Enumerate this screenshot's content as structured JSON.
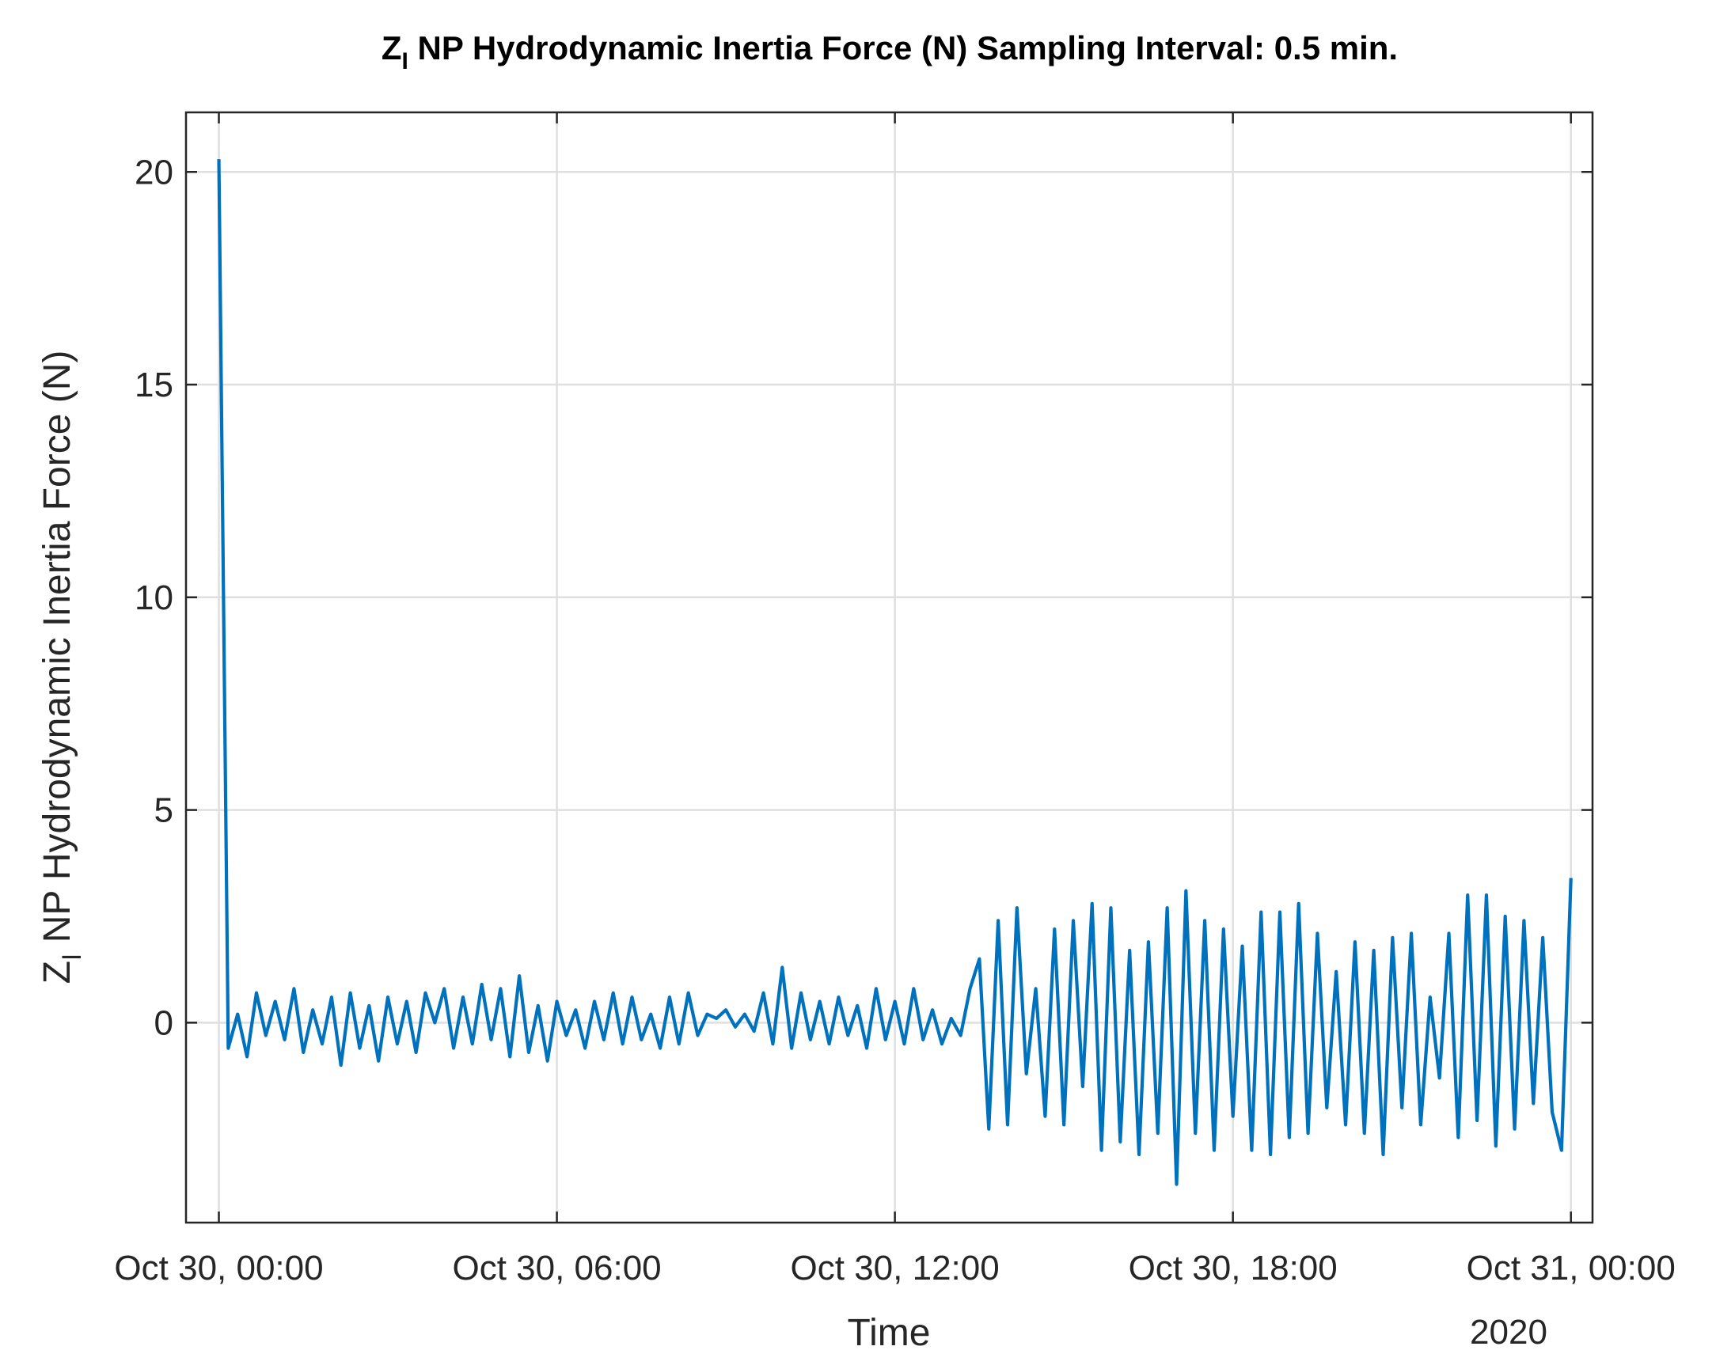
{
  "chart_data": {
    "type": "line",
    "title_parts": [
      "Z",
      "I",
      " NP Hydrodynamic Inertia Force (N) Sampling Interval: 0.5 min."
    ],
    "ylabel_parts": [
      "Z",
      "I",
      " NP Hydrodynamic Inertia Force (N)"
    ],
    "xlabel": "Time",
    "x_secondary_label": "2020",
    "grid": true,
    "xlim": [
      "2020-10-29T23:25",
      "2020-10-31T00:23"
    ],
    "xticks": [
      {
        "value": "2020-10-30T00:00",
        "label": "Oct 30, 00:00"
      },
      {
        "value": "2020-10-30T06:00",
        "label": "Oct 30, 06:00"
      },
      {
        "value": "2020-10-30T12:00",
        "label": "Oct 30, 12:00"
      },
      {
        "value": "2020-10-30T18:00",
        "label": "Oct 30, 18:00"
      },
      {
        "value": "2020-10-31T00:00",
        "label": "Oct 31, 00:00"
      }
    ],
    "ylim": [
      -4.7,
      21.4
    ],
    "yticks": [
      0,
      5,
      10,
      15,
      20
    ],
    "x": [
      "2020-10-30T00:00",
      "2020-10-30T00:10",
      "2020-10-30T00:20",
      "2020-10-30T00:30",
      "2020-10-30T00:40",
      "2020-10-30T00:50",
      "2020-10-30T01:00",
      "2020-10-30T01:10",
      "2020-10-30T01:20",
      "2020-10-30T01:30",
      "2020-10-30T01:40",
      "2020-10-30T01:50",
      "2020-10-30T02:00",
      "2020-10-30T02:10",
      "2020-10-30T02:20",
      "2020-10-30T02:30",
      "2020-10-30T02:40",
      "2020-10-30T02:50",
      "2020-10-30T03:00",
      "2020-10-30T03:10",
      "2020-10-30T03:20",
      "2020-10-30T03:30",
      "2020-10-30T03:40",
      "2020-10-30T03:50",
      "2020-10-30T04:00",
      "2020-10-30T04:10",
      "2020-10-30T04:20",
      "2020-10-30T04:30",
      "2020-10-30T04:40",
      "2020-10-30T04:50",
      "2020-10-30T05:00",
      "2020-10-30T05:10",
      "2020-10-30T05:20",
      "2020-10-30T05:30",
      "2020-10-30T05:40",
      "2020-10-30T05:50",
      "2020-10-30T06:00",
      "2020-10-30T06:10",
      "2020-10-30T06:20",
      "2020-10-30T06:30",
      "2020-10-30T06:40",
      "2020-10-30T06:50",
      "2020-10-30T07:00",
      "2020-10-30T07:10",
      "2020-10-30T07:20",
      "2020-10-30T07:30",
      "2020-10-30T07:40",
      "2020-10-30T07:50",
      "2020-10-30T08:00",
      "2020-10-30T08:10",
      "2020-10-30T08:20",
      "2020-10-30T08:30",
      "2020-10-30T08:40",
      "2020-10-30T08:50",
      "2020-10-30T09:00",
      "2020-10-30T09:10",
      "2020-10-30T09:20",
      "2020-10-30T09:30",
      "2020-10-30T09:40",
      "2020-10-30T09:50",
      "2020-10-30T10:00",
      "2020-10-30T10:10",
      "2020-10-30T10:20",
      "2020-10-30T10:30",
      "2020-10-30T10:40",
      "2020-10-30T10:50",
      "2020-10-30T11:00",
      "2020-10-30T11:10",
      "2020-10-30T11:20",
      "2020-10-30T11:30",
      "2020-10-30T11:40",
      "2020-10-30T11:50",
      "2020-10-30T12:00",
      "2020-10-30T12:10",
      "2020-10-30T12:20",
      "2020-10-30T12:30",
      "2020-10-30T12:40",
      "2020-10-30T12:50",
      "2020-10-30T13:00",
      "2020-10-30T13:10",
      "2020-10-30T13:20",
      "2020-10-30T13:30",
      "2020-10-30T13:40",
      "2020-10-30T13:50",
      "2020-10-30T14:00",
      "2020-10-30T14:10",
      "2020-10-30T14:20",
      "2020-10-30T14:30",
      "2020-10-30T14:40",
      "2020-10-30T14:50",
      "2020-10-30T15:00",
      "2020-10-30T15:10",
      "2020-10-30T15:20",
      "2020-10-30T15:30",
      "2020-10-30T15:40",
      "2020-10-30T15:50",
      "2020-10-30T16:00",
      "2020-10-30T16:10",
      "2020-10-30T16:20",
      "2020-10-30T16:30",
      "2020-10-30T16:40",
      "2020-10-30T16:50",
      "2020-10-30T17:00",
      "2020-10-30T17:10",
      "2020-10-30T17:20",
      "2020-10-30T17:30",
      "2020-10-30T17:40",
      "2020-10-30T17:50",
      "2020-10-30T18:00",
      "2020-10-30T18:10",
      "2020-10-30T18:20",
      "2020-10-30T18:30",
      "2020-10-30T18:40",
      "2020-10-30T18:50",
      "2020-10-30T19:00",
      "2020-10-30T19:10",
      "2020-10-30T19:20",
      "2020-10-30T19:30",
      "2020-10-30T19:40",
      "2020-10-30T19:50",
      "2020-10-30T20:00",
      "2020-10-30T20:10",
      "2020-10-30T20:20",
      "2020-10-30T20:30",
      "2020-10-30T20:40",
      "2020-10-30T20:50",
      "2020-10-30T21:00",
      "2020-10-30T21:10",
      "2020-10-30T21:20",
      "2020-10-30T21:30",
      "2020-10-30T21:40",
      "2020-10-30T21:50",
      "2020-10-30T22:00",
      "2020-10-30T22:10",
      "2020-10-30T22:20",
      "2020-10-30T22:30",
      "2020-10-30T22:40",
      "2020-10-30T22:50",
      "2020-10-30T23:00",
      "2020-10-30T23:10",
      "2020-10-30T23:20",
      "2020-10-30T23:30",
      "2020-10-30T23:40",
      "2020-10-30T23:50",
      "2020-10-31T00:00"
    ],
    "series": [
      {
        "color": "#0072bd",
        "values": [
          20.3,
          -0.6,
          0.2,
          -0.8,
          0.7,
          -0.3,
          0.5,
          -0.4,
          0.8,
          -0.7,
          0.3,
          -0.5,
          0.6,
          -1.0,
          0.7,
          -0.6,
          0.4,
          -0.9,
          0.6,
          -0.5,
          0.5,
          -0.7,
          0.7,
          0.0,
          0.8,
          -0.6,
          0.6,
          -0.5,
          0.9,
          -0.4,
          0.8,
          -0.8,
          1.1,
          -0.7,
          0.4,
          -0.9,
          0.5,
          -0.3,
          0.3,
          -0.6,
          0.5,
          -0.4,
          0.7,
          -0.5,
          0.6,
          -0.4,
          0.2,
          -0.6,
          0.6,
          -0.5,
          0.7,
          -0.3,
          0.2,
          0.1,
          0.3,
          -0.1,
          0.2,
          -0.2,
          0.7,
          -0.5,
          1.3,
          -0.6,
          0.7,
          -0.4,
          0.5,
          -0.5,
          0.6,
          -0.3,
          0.4,
          -0.6,
          0.8,
          -0.4,
          0.5,
          -0.5,
          0.8,
          -0.4,
          0.3,
          -0.5,
          0.1,
          -0.3,
          0.8,
          1.5,
          -2.5,
          2.4,
          -2.4,
          2.7,
          -1.2,
          0.8,
          -2.2,
          2.2,
          -2.4,
          2.4,
          -1.5,
          2.8,
          -3.0,
          2.7,
          -2.8,
          1.7,
          -3.1,
          1.9,
          -2.6,
          2.7,
          -3.8,
          3.1,
          -2.6,
          2.4,
          -3.0,
          2.2,
          -2.2,
          1.8,
          -3.0,
          2.6,
          -3.1,
          2.6,
          -2.7,
          2.8,
          -2.6,
          2.1,
          -2.0,
          1.2,
          -2.4,
          1.9,
          -2.6,
          1.7,
          -3.1,
          2.0,
          -2.0,
          2.1,
          -2.4,
          0.6,
          -1.3,
          2.1,
          -2.7,
          3.0,
          -2.3,
          3.0,
          -2.9,
          2.5,
          -2.5,
          2.4,
          -1.9,
          2.0,
          -2.1,
          -3.0,
          3.4
        ]
      }
    ]
  }
}
